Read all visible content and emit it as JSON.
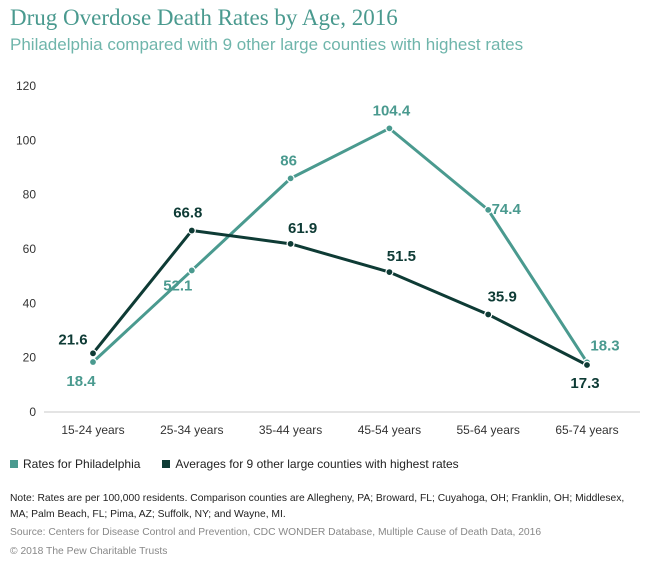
{
  "header": {
    "title": "Drug Overdose Death Rates by Age, 2016",
    "subtitle": "Philadelphia compared with 9 other large counties with highest rates"
  },
  "chart_data": {
    "type": "line",
    "title": "Drug Overdose Death Rates by Age, 2016",
    "subtitle": "Philadelphia compared with 9 other large counties with highest rates",
    "categories": [
      "15-24 years",
      "25-34 years",
      "35-44 years",
      "45-54 years",
      "55-64 years",
      "65-74 years"
    ],
    "ylim": [
      0,
      120
    ],
    "yticks": [
      0,
      20,
      40,
      60,
      80,
      100,
      120
    ],
    "grid": false,
    "legend_position": "bottom",
    "series": [
      {
        "name": "Rates for Philadelphia",
        "color": "#4a9a8f",
        "values": [
          18.4,
          52.1,
          86,
          104.4,
          74.4,
          18.3
        ],
        "labels": [
          "18.4",
          "52.1",
          "86",
          "104.4",
          "74.4",
          "18.3"
        ]
      },
      {
        "name": "Averages for 9 other large counties with highest rates",
        "color": "#0e3b35",
        "values": [
          21.6,
          66.8,
          61.9,
          51.5,
          35.9,
          17.3
        ],
        "labels": [
          "21.6",
          "66.8",
          "61.9",
          "51.5",
          "35.9",
          "17.3"
        ]
      }
    ]
  },
  "footer": {
    "note": "Note: Rates are per 100,000 residents. Comparison counties are Allegheny, PA; Broward, FL; Cuyahoga, OH; Franklin, OH; Middlesex, MA; Palm Beach, FL; Pima, AZ; Suffolk, NY; and Wayne, MI.",
    "source": "Source: Centers for Disease Control and Prevention, CDC WONDER Database, Multiple Cause of Death Data, 2016",
    "copyright": "© 2018 The Pew Charitable Trusts"
  }
}
